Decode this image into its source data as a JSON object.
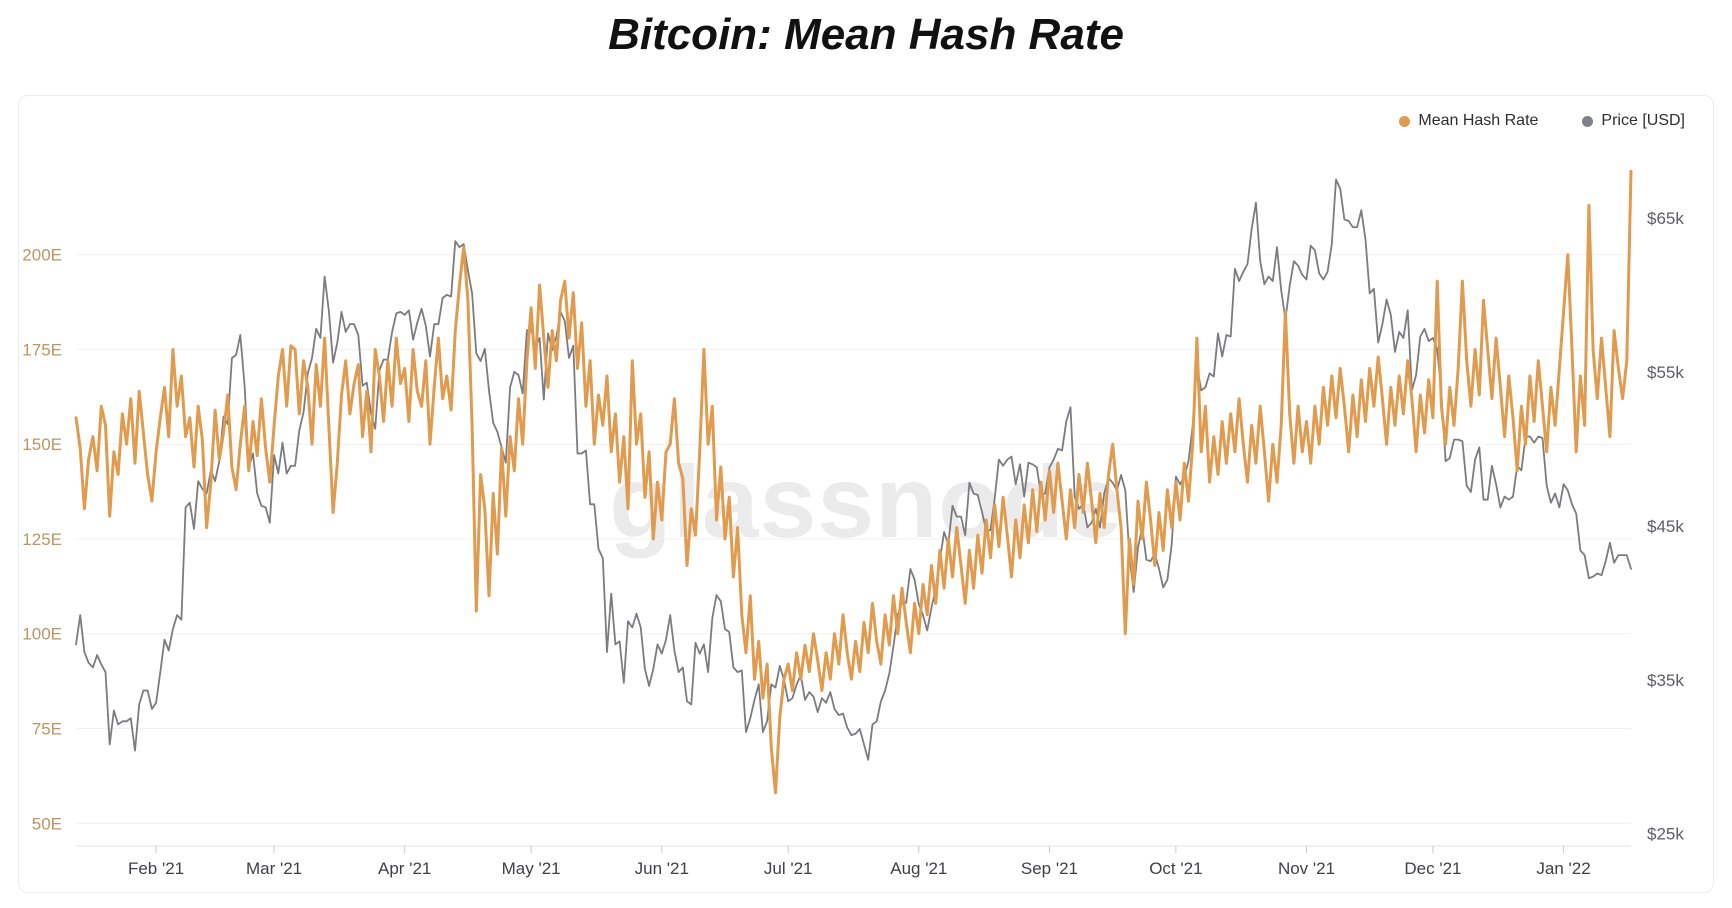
{
  "title": "Bitcoin: Mean Hash Rate",
  "watermark": "glassnode",
  "legend": {
    "items": [
      {
        "label": "Mean Hash Rate",
        "color": "#e09b4e"
      },
      {
        "label": "Price [USD]",
        "color": "#7f7f87"
      }
    ]
  },
  "chart_data": {
    "type": "line",
    "title": "Bitcoin: Mean Hash Rate",
    "x_start": "2021-01-13",
    "x_end": "2022-01-17",
    "grid": "horizontal",
    "legend_position": "top-right",
    "x_axis": {
      "tick_labels": [
        "Feb '21",
        "Mar '21",
        "Apr '21",
        "May '21",
        "Jun '21",
        "Jul '21",
        "Aug '21",
        "Sep '21",
        "Oct '21",
        "Nov '21",
        "Dec '21",
        "Jan '22"
      ],
      "tick_day_index": [
        19,
        47,
        78,
        108,
        139,
        169,
        200,
        231,
        261,
        292,
        322,
        353
      ],
      "label_color": "#3f3f46"
    },
    "left_axis": {
      "name": "Mean Hash Rate",
      "tick_labels": [
        "50E",
        "75E",
        "100E",
        "125E",
        "150E",
        "175E",
        "200E"
      ],
      "tick_values": [
        50,
        75,
        100,
        125,
        150,
        175,
        200
      ],
      "range": [
        44,
        230
      ],
      "label_color": "#bc9663"
    },
    "right_axis": {
      "name": "Price [USD]",
      "tick_labels": [
        "$25k",
        "$35k",
        "$45k",
        "$55k",
        "$65k"
      ],
      "tick_values": [
        25,
        35,
        45,
        55,
        65
      ],
      "range": [
        24.2,
        70.0
      ],
      "label_color": "#5d5d64"
    },
    "series": [
      {
        "name": "Price [USD]",
        "axis": "right",
        "color": "#7b7b81",
        "width": 1.8,
        "values": [
          37.3,
          39.2,
          36.8,
          36.1,
          35.8,
          36.6,
          36.0,
          35.5,
          30.8,
          33.0,
          32.1,
          32.3,
          32.3,
          32.5,
          30.4,
          33.4,
          34.3,
          34.3,
          33.1,
          33.5,
          35.5,
          37.6,
          36.9,
          38.3,
          39.2,
          38.9,
          46.2,
          46.5,
          44.8,
          47.9,
          47.4,
          47.1,
          48.6,
          47.9,
          49.2,
          52.1,
          51.6,
          55.9,
          56.1,
          57.4,
          54.1,
          48.8,
          49.7,
          47.1,
          46.3,
          46.2,
          45.2,
          49.6,
          48.4,
          50.4,
          48.4,
          48.9,
          48.9,
          51.2,
          52.4,
          54.9,
          55.9,
          57.8,
          57.2,
          61.2,
          59.0,
          55.6,
          56.9,
          58.9,
          57.6,
          58.1,
          58.1,
          57.4,
          54.1,
          54.3,
          52.3,
          51.3,
          55.1,
          55.8,
          55.8,
          57.6,
          58.8,
          58.9,
          58.7,
          59.0,
          57.1,
          58.2,
          59.1,
          58.0,
          56.0,
          58.1,
          58.1,
          59.8,
          60.0,
          59.9,
          63.5,
          63.1,
          63.3,
          61.6,
          60.1,
          56.2,
          55.7,
          56.5,
          53.8,
          51.7,
          51.1,
          50.1,
          49.1,
          54.0,
          55.0,
          54.8,
          53.6,
          57.7,
          57.8,
          56.6,
          57.2,
          53.2,
          57.5,
          56.4,
          57.3,
          58.9,
          58.3,
          55.9,
          56.7,
          49.7,
          49.7,
          49.9,
          46.4,
          46.4,
          43.5,
          42.9,
          36.8,
          40.6,
          37.3,
          37.5,
          34.8,
          38.8,
          38.4,
          39.3,
          38.4,
          35.7,
          34.6,
          35.7,
          37.3,
          36.7,
          37.6,
          39.2,
          36.9,
          35.5,
          35.8,
          33.6,
          33.4,
          37.4,
          36.7,
          37.3,
          35.5,
          39.0,
          40.5,
          40.1,
          38.3,
          38.1,
          35.8,
          35.5,
          35.6,
          31.6,
          32.5,
          33.7,
          34.7,
          31.6,
          32.3,
          34.7,
          34.5,
          35.9,
          35.0,
          33.6,
          33.8,
          34.7,
          35.3,
          33.7,
          34.2,
          33.9,
          32.9,
          33.8,
          33.5,
          34.2,
          33.1,
          32.7,
          32.8,
          31.9,
          31.4,
          31.5,
          31.8,
          30.8,
          29.8,
          32.1,
          32.3,
          33.6,
          34.3,
          35.4,
          37.2,
          39.2,
          40.0,
          40.0,
          42.2,
          41.5,
          39.9,
          39.2,
          38.2,
          39.7,
          40.9,
          42.8,
          44.6,
          43.8,
          46.3,
          45.6,
          45.6,
          44.4,
          47.8,
          47.1,
          47.0,
          45.9,
          44.7,
          44.7,
          46.8,
          49.3,
          48.9,
          49.3,
          49.5,
          47.7,
          49.0,
          46.9,
          49.1,
          49.0,
          48.8,
          47.0,
          47.1,
          48.8,
          49.3,
          50.0,
          49.9,
          51.8,
          52.7,
          46.9,
          46.1,
          46.4,
          44.9,
          45.2,
          46.1,
          44.9,
          47.1,
          48.1,
          47.8,
          47.3,
          48.3,
          47.3,
          43.0,
          40.7,
          43.6,
          44.9,
          42.8,
          42.7,
          43.2,
          42.2,
          41.0,
          41.5,
          43.8,
          48.2,
          47.7,
          48.2,
          49.2,
          51.5,
          55.4,
          53.8,
          54.0,
          54.9,
          54.7,
          57.5,
          56.0,
          57.4,
          57.3,
          61.7,
          60.9,
          61.5,
          62.0,
          64.3,
          66.0,
          62.2,
          60.7,
          61.2,
          60.9,
          63.1,
          60.3,
          58.4,
          60.6,
          62.2,
          61.9,
          61.3,
          61.0,
          63.2,
          62.9,
          61.4,
          61.0,
          61.5,
          63.3,
          67.5,
          66.9,
          64.9,
          64.8,
          64.4,
          64.4,
          65.5,
          63.6,
          60.1,
          60.4,
          56.9,
          58.1,
          59.7,
          58.7,
          56.3,
          57.6,
          57.2,
          59.0,
          53.8,
          54.8,
          57.3,
          57.8,
          57.0,
          57.2,
          56.5,
          53.6,
          49.2,
          49.4,
          50.6,
          50.6,
          50.5,
          47.6,
          47.2,
          49.3,
          50.1,
          46.7,
          46.7,
          48.9,
          47.7,
          46.2,
          46.9,
          46.7,
          46.9,
          48.9,
          48.6,
          50.8,
          50.8,
          50.4,
          50.8,
          50.7,
          47.6,
          46.5,
          47.1,
          46.2,
          47.7,
          47.3,
          46.4,
          45.8,
          43.4,
          43.1,
          41.6,
          41.7,
          41.9,
          41.8,
          42.7,
          43.9,
          42.6,
          43.1,
          43.1,
          43.1,
          42.2
        ]
      },
      {
        "name": "Mean Hash Rate",
        "axis": "left",
        "color": "#e09b4e",
        "width": 3,
        "values": [
          157,
          149,
          133,
          146,
          152,
          143,
          160,
          155,
          131,
          148,
          142,
          158,
          150,
          162,
          145,
          164,
          153,
          142,
          135,
          148,
          157,
          165,
          152,
          175,
          160,
          168,
          152,
          157,
          144,
          160,
          151,
          128,
          140,
          159,
          146,
          153,
          163,
          144,
          138,
          150,
          160,
          143,
          156,
          147,
          162,
          149,
          140,
          155,
          168,
          175,
          160,
          176,
          175,
          158,
          172,
          165,
          150,
          171,
          160,
          178,
          155,
          132,
          145,
          163,
          172,
          158,
          166,
          171,
          152,
          164,
          148,
          175,
          168,
          156,
          172,
          160,
          178,
          166,
          170,
          156,
          175,
          164,
          160,
          172,
          150,
          165,
          178,
          162,
          168,
          159,
          180,
          192,
          202,
          188,
          155,
          106,
          142,
          133,
          110,
          137,
          121,
          149,
          131,
          152,
          143,
          162,
          150,
          172,
          186,
          170,
          192,
          178,
          165,
          180,
          172,
          188,
          193,
          178,
          190,
          170,
          182,
          160,
          172,
          150,
          163,
          155,
          168,
          148,
          158,
          140,
          152,
          133,
          172,
          150,
          158,
          136,
          148,
          125,
          140,
          130,
          148,
          150,
          162,
          145,
          141,
          118,
          133,
          126,
          148,
          175,
          150,
          160,
          130,
          144,
          125,
          136,
          115,
          128,
          105,
          95,
          110,
          88,
          98,
          83,
          92,
          70,
          58,
          78,
          88,
          92,
          85,
          95,
          88,
          97,
          90,
          100,
          93,
          85,
          95,
          88,
          100,
          92,
          105,
          95,
          88,
          98,
          90,
          103,
          95,
          108,
          98,
          92,
          105,
          97,
          110,
          100,
          112,
          103,
          95,
          108,
          100,
          113,
          105,
          118,
          108,
          122,
          112,
          125,
          115,
          128,
          118,
          108,
          122,
          112,
          126,
          116,
          130,
          120,
          134,
          123,
          136,
          126,
          115,
          130,
          120,
          134,
          124,
          138,
          127,
          140,
          130,
          143,
          132,
          145,
          135,
          125,
          138,
          128,
          142,
          132,
          145,
          135,
          124,
          137,
          128,
          142,
          150,
          138,
          128,
          100,
          125,
          113,
          135,
          125,
          140,
          130,
          118,
          132,
          122,
          138,
          128,
          140,
          130,
          145,
          135,
          150,
          178,
          148,
          160,
          140,
          152,
          142,
          156,
          145,
          158,
          148,
          162,
          150,
          140,
          155,
          145,
          160,
          148,
          135,
          150,
          140,
          155,
          185,
          158,
          145,
          160,
          148,
          156,
          145,
          160,
          150,
          165,
          155,
          168,
          157,
          170,
          160,
          148,
          163,
          152,
          167,
          156,
          170,
          160,
          173,
          162,
          150,
          165,
          155,
          168,
          158,
          172,
          162,
          148,
          163,
          153,
          167,
          157,
          193,
          160,
          150,
          165,
          155,
          170,
          193,
          172,
          160,
          175,
          163,
          188,
          175,
          162,
          178,
          165,
          152,
          168,
          157,
          143,
          160,
          150,
          168,
          156,
          172,
          160,
          148,
          165,
          155,
          170,
          185,
          200,
          175,
          148,
          168,
          155,
          213,
          175,
          162,
          178,
          165,
          152,
          180,
          170,
          162,
          172,
          222
        ]
      }
    ]
  }
}
